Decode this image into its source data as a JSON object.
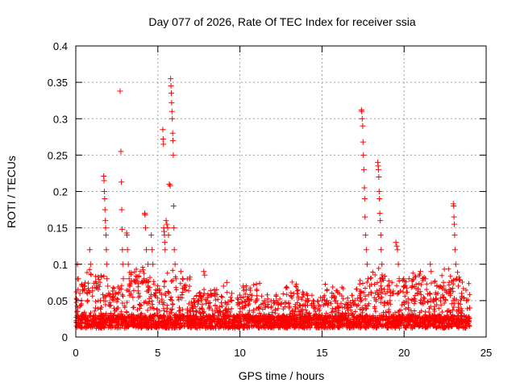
{
  "chart_data": {
    "type": "scatter",
    "title": "Day 077 of 2026, Rate Of TEC Index for receiver ssia",
    "xlabel": "GPS time / hours",
    "ylabel": "ROTI / TECUs",
    "xlim": [
      0,
      25
    ],
    "ylim": [
      0,
      0.4
    ],
    "xticks": [
      "0",
      "5",
      "10",
      "15",
      "20",
      "25"
    ],
    "yticks": [
      "0",
      "0.05",
      "0.1",
      "0.15",
      "0.2",
      "0.25",
      "0.3",
      "0.35",
      "0.4"
    ],
    "grid": true,
    "marker": "+",
    "series": [
      {
        "color": "#ff0000",
        "points": [
          [
            0.1,
            0.1
          ],
          [
            0.15,
            0.08
          ],
          [
            0.25,
            0.06
          ],
          [
            0.35,
            0.05
          ],
          [
            0.5,
            0.07
          ],
          [
            0.7,
            0.06
          ],
          [
            0.85,
            0.12
          ],
          [
            0.9,
            0.1
          ],
          [
            1.2,
            0.04
          ],
          [
            1.5,
            0.05
          ],
          [
            1.7,
            0.221
          ],
          [
            1.72,
            0.215
          ],
          [
            1.74,
            0.2
          ],
          [
            1.76,
            0.19
          ],
          [
            1.78,
            0.175
          ],
          [
            1.8,
            0.16
          ],
          [
            1.82,
            0.15
          ],
          [
            1.84,
            0.14
          ],
          [
            1.86,
            0.12
          ],
          [
            1.88,
            0.1
          ],
          [
            1.9,
            0.08
          ],
          [
            1.95,
            0.07
          ],
          [
            2.0,
            0.06
          ],
          [
            2.7,
            0.338
          ],
          [
            2.75,
            0.255
          ],
          [
            2.78,
            0.213
          ],
          [
            2.8,
            0.175
          ],
          [
            2.82,
            0.148
          ],
          [
            2.84,
            0.12
          ],
          [
            2.86,
            0.1
          ],
          [
            2.9,
            0.08
          ],
          [
            3.1,
            0.143
          ],
          [
            3.12,
            0.14
          ],
          [
            3.15,
            0.12
          ],
          [
            3.2,
            0.1
          ],
          [
            3.25,
            0.08
          ],
          [
            3.3,
            0.07
          ],
          [
            4.2,
            0.17
          ],
          [
            4.22,
            0.168
          ],
          [
            4.25,
            0.15
          ],
          [
            4.3,
            0.12
          ],
          [
            4.4,
            0.1
          ],
          [
            4.6,
            0.14
          ],
          [
            4.65,
            0.12
          ],
          [
            4.7,
            0.1
          ],
          [
            5.3,
            0.285
          ],
          [
            5.32,
            0.272
          ],
          [
            5.34,
            0.265
          ],
          [
            5.36,
            0.15
          ],
          [
            5.38,
            0.145
          ],
          [
            5.4,
            0.14
          ],
          [
            5.42,
            0.13
          ],
          [
            5.44,
            0.12
          ],
          [
            5.5,
            0.16
          ],
          [
            5.55,
            0.155
          ],
          [
            5.6,
            0.15
          ],
          [
            5.65,
            0.14
          ],
          [
            5.7,
            0.21
          ],
          [
            5.75,
            0.208
          ],
          [
            5.78,
            0.355
          ],
          [
            5.8,
            0.345
          ],
          [
            5.82,
            0.335
          ],
          [
            5.84,
            0.322
          ],
          [
            5.86,
            0.31
          ],
          [
            5.88,
            0.3
          ],
          [
            5.9,
            0.28
          ],
          [
            5.92,
            0.27
          ],
          [
            5.94,
            0.25
          ],
          [
            5.96,
            0.18
          ],
          [
            5.98,
            0.15
          ],
          [
            6.0,
            0.12
          ],
          [
            6.05,
            0.1
          ],
          [
            6.1,
            0.08
          ],
          [
            6.4,
            0.09
          ],
          [
            6.5,
            0.08
          ],
          [
            6.6,
            0.07
          ],
          [
            7.5,
            0.05
          ],
          [
            7.8,
            0.09
          ],
          [
            7.85,
            0.085
          ],
          [
            8.0,
            0.05
          ],
          [
            8.5,
            0.06
          ],
          [
            9.0,
            0.07
          ],
          [
            9.2,
            0.075
          ],
          [
            9.5,
            0.06
          ],
          [
            10.2,
            0.07
          ],
          [
            10.4,
            0.065
          ],
          [
            10.6,
            0.05
          ],
          [
            11.0,
            0.05
          ],
          [
            11.5,
            0.05
          ],
          [
            12.2,
            0.05
          ],
          [
            12.5,
            0.045
          ],
          [
            13.0,
            0.04
          ],
          [
            13.5,
            0.06
          ],
          [
            13.8,
            0.055
          ],
          [
            14.0,
            0.05
          ],
          [
            14.5,
            0.04
          ],
          [
            15.0,
            0.05
          ],
          [
            15.3,
            0.05
          ],
          [
            16.0,
            0.04
          ],
          [
            16.5,
            0.045
          ],
          [
            17.0,
            0.05
          ],
          [
            17.4,
            0.312
          ],
          [
            17.42,
            0.31
          ],
          [
            17.45,
            0.3
          ],
          [
            17.48,
            0.29
          ],
          [
            17.5,
            0.268
          ],
          [
            17.52,
            0.25
          ],
          [
            17.55,
            0.23
          ],
          [
            17.58,
            0.205
          ],
          [
            17.6,
            0.19
          ],
          [
            17.62,
            0.165
          ],
          [
            17.65,
            0.14
          ],
          [
            17.7,
            0.12
          ],
          [
            17.75,
            0.1
          ],
          [
            17.8,
            0.08
          ],
          [
            17.9,
            0.07
          ],
          [
            18.0,
            0.06
          ],
          [
            18.4,
            0.24
          ],
          [
            18.42,
            0.235
          ],
          [
            18.44,
            0.23
          ],
          [
            18.46,
            0.22
          ],
          [
            18.48,
            0.2
          ],
          [
            18.5,
            0.19
          ],
          [
            18.52,
            0.17
          ],
          [
            18.55,
            0.16
          ],
          [
            18.58,
            0.14
          ],
          [
            18.6,
            0.12
          ],
          [
            18.65,
            0.1
          ],
          [
            18.7,
            0.08
          ],
          [
            19.0,
            0.07
          ],
          [
            19.3,
            0.06
          ],
          [
            19.5,
            0.13
          ],
          [
            19.55,
            0.125
          ],
          [
            19.6,
            0.12
          ],
          [
            19.65,
            0.1
          ],
          [
            19.7,
            0.08
          ],
          [
            20.0,
            0.07
          ],
          [
            20.3,
            0.08
          ],
          [
            20.5,
            0.07
          ],
          [
            21.0,
            0.09
          ],
          [
            21.3,
            0.08
          ],
          [
            21.6,
            0.1
          ],
          [
            21.65,
            0.09
          ],
          [
            22.0,
            0.07
          ],
          [
            22.4,
            0.07
          ],
          [
            22.7,
            0.06
          ],
          [
            23.0,
            0.183
          ],
          [
            23.02,
            0.18
          ],
          [
            23.04,
            0.165
          ],
          [
            23.06,
            0.155
          ],
          [
            23.08,
            0.14
          ],
          [
            23.1,
            0.12
          ],
          [
            23.15,
            0.1
          ],
          [
            23.2,
            0.08
          ],
          [
            23.3,
            0.07
          ],
          [
            23.5,
            0.06
          ],
          [
            23.8,
            0.05
          ],
          [
            24.0,
            0.04
          ]
        ]
      }
    ]
  }
}
